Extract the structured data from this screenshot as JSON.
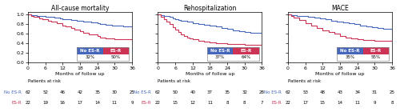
{
  "chart_data": [
    {
      "type": "step",
      "title": "All-cause mortality",
      "xlabel": "Months of follow up",
      "xlim": [
        0,
        36
      ],
      "ylim": [
        0.0,
        1.05
      ],
      "xticks": [
        0,
        6,
        12,
        18,
        24,
        30,
        36
      ],
      "yticks": [
        {
          "value": 0.0,
          "label": "0.0"
        },
        0.2,
        0.4,
        0.6,
        0.8,
        {
          "value": 1.0,
          "label": "1.0"
        }
      ],
      "legend": "lower right",
      "risk_label": "Patients at risk",
      "series": [
        {
          "name": "No ES-R",
          "color": "#4466bb",
          "x": [
            0,
            1,
            3,
            5,
            6,
            8,
            9,
            11,
            12,
            14,
            15,
            17,
            18,
            19,
            21,
            22,
            24,
            25,
            27,
            29,
            30,
            33,
            36
          ],
          "values": [
            1.0,
            0.99,
            0.98,
            0.97,
            0.96,
            0.95,
            0.94,
            0.92,
            0.91,
            0.9,
            0.89,
            0.88,
            0.87,
            0.86,
            0.85,
            0.84,
            0.82,
            0.81,
            0.79,
            0.78,
            0.77,
            0.76,
            0.67
          ],
          "event_rate": {
            "value": 32,
            "label": "32%"
          },
          "at_risk": [
            62,
            52,
            46,
            42,
            35,
            30,
            25
          ]
        },
        {
          "name": "ES-R",
          "color": "#cc3355",
          "x": [
            0,
            1,
            2,
            4,
            5,
            7,
            8,
            10,
            12,
            13,
            15,
            16,
            18,
            19,
            21,
            24,
            25,
            27,
            30,
            33,
            36
          ],
          "values": [
            1.0,
            0.98,
            0.96,
            0.93,
            0.91,
            0.88,
            0.85,
            0.82,
            0.78,
            0.75,
            0.72,
            0.69,
            0.65,
            0.62,
            0.59,
            0.55,
            0.53,
            0.51,
            0.49,
            0.49,
            0.49
          ],
          "event_rate": {
            "value": 50,
            "label": "50%"
          },
          "at_risk": [
            22,
            19,
            16,
            17,
            14,
            11,
            9
          ]
        }
      ]
    },
    {
      "type": "step",
      "title": "Rehospitalization",
      "xlabel": "Months of follow up",
      "xlim": [
        0,
        36
      ],
      "ylim": [
        0.0,
        1.05
      ],
      "xticks": [
        0,
        6,
        12,
        18,
        24,
        30,
        36
      ],
      "yticks": [
        {
          "value": 0.0,
          "label": "0.0"
        },
        0.2,
        0.4,
        0.6,
        0.8,
        {
          "value": 1.0,
          "label": "1.0"
        }
      ],
      "tick_labels": "x",
      "legend": "lower right",
      "risk_label": "Patients at risk",
      "series": [
        {
          "name": "No ES-R",
          "color": "#4466bb",
          "x": [
            0,
            1,
            2,
            4,
            5,
            6,
            7,
            8,
            10,
            12,
            14,
            16,
            18,
            20,
            22,
            24,
            26,
            28,
            30,
            32,
            36
          ],
          "values": [
            1.0,
            0.99,
            0.97,
            0.95,
            0.93,
            0.91,
            0.89,
            0.87,
            0.85,
            0.83,
            0.81,
            0.79,
            0.77,
            0.75,
            0.73,
            0.71,
            0.68,
            0.66,
            0.64,
            0.63,
            0.62
          ],
          "event_rate": {
            "value": 37,
            "label": "37%"
          },
          "at_risk": [
            62,
            50,
            40,
            37,
            35,
            32,
            28
          ]
        },
        {
          "name": "ES-R",
          "color": "#cc3355",
          "x": [
            0,
            1,
            2,
            3,
            4,
            5,
            6,
            7,
            8,
            9,
            10,
            11,
            12,
            14,
            16,
            18,
            20,
            22,
            24,
            30,
            36
          ],
          "values": [
            1.0,
            0.96,
            0.9,
            0.85,
            0.8,
            0.74,
            0.69,
            0.64,
            0.59,
            0.56,
            0.53,
            0.51,
            0.49,
            0.46,
            0.44,
            0.42,
            0.41,
            0.4,
            0.39,
            0.37,
            0.37
          ],
          "event_rate": {
            "value": 64,
            "label": "64%"
          },
          "at_risk": [
            22,
            15,
            12,
            11,
            8,
            8,
            7
          ]
        }
      ]
    },
    {
      "type": "step",
      "title": "MACE",
      "xlabel": "Months of follow up",
      "xlim": [
        0,
        36
      ],
      "ylim": [
        0.0,
        1.05
      ],
      "xticks": [
        0,
        6,
        12,
        18,
        24,
        30,
        36
      ],
      "yticks": [
        {
          "value": 0.0,
          "label": "0.0"
        },
        0.2,
        0.4,
        0.6,
        0.8,
        {
          "value": 1.0,
          "label": "1.0"
        }
      ],
      "tick_labels": "x",
      "legend": "lower right",
      "risk_label": "Patients at risk",
      "series": [
        {
          "name": "No ES-R",
          "color": "#4466bb",
          "x": [
            0,
            1,
            3,
            5,
            7,
            9,
            11,
            13,
            15,
            17,
            19,
            21,
            23,
            25,
            27,
            29,
            31,
            33,
            36
          ],
          "values": [
            1.0,
            0.99,
            0.98,
            0.97,
            0.96,
            0.94,
            0.92,
            0.9,
            0.88,
            0.86,
            0.84,
            0.82,
            0.8,
            0.78,
            0.76,
            0.74,
            0.72,
            0.7,
            0.64
          ],
          "event_rate": {
            "value": 35,
            "label": "35%"
          },
          "at_risk": [
            62,
            53,
            48,
            43,
            34,
            31,
            25
          ]
        },
        {
          "name": "ES-R",
          "color": "#cc3355",
          "x": [
            0,
            1,
            2,
            4,
            6,
            8,
            10,
            12,
            14,
            16,
            18,
            20,
            22,
            24,
            26,
            30,
            36
          ],
          "values": [
            1.0,
            0.97,
            0.94,
            0.89,
            0.83,
            0.78,
            0.73,
            0.68,
            0.64,
            0.6,
            0.56,
            0.53,
            0.51,
            0.49,
            0.47,
            0.46,
            0.46
          ],
          "event_rate": {
            "value": 55,
            "label": "55%"
          },
          "at_risk": [
            22,
            17,
            15,
            14,
            11,
            9,
            8
          ]
        }
      ]
    }
  ]
}
